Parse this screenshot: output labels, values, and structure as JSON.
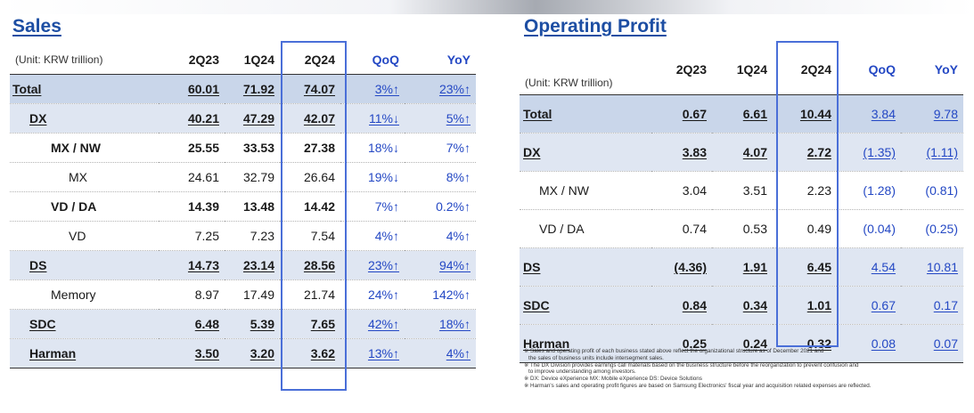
{
  "sales": {
    "title": "Sales",
    "unit": "(Unit: KRW trillion)",
    "columns": [
      "2Q23",
      "1Q24",
      "2Q24",
      "QoQ",
      "YoY"
    ],
    "rows": [
      {
        "label": "Total",
        "v1": "60.01",
        "v2": "71.92",
        "v3": "74.07",
        "qoq": "3%↑",
        "yoy": "23%↑"
      },
      {
        "label": "DX",
        "v1": "40.21",
        "v2": "47.29",
        "v3": "42.07",
        "qoq": "11%↓",
        "yoy": "5%↑"
      },
      {
        "label": "MX / NW",
        "v1": "25.55",
        "v2": "33.53",
        "v3": "27.38",
        "qoq": "18%↓",
        "yoy": "7%↑"
      },
      {
        "label": "MX",
        "v1": "24.61",
        "v2": "32.79",
        "v3": "26.64",
        "qoq": "19%↓",
        "yoy": "8%↑"
      },
      {
        "label": "VD / DA",
        "v1": "14.39",
        "v2": "13.48",
        "v3": "14.42",
        "qoq": "7%↑",
        "yoy": "0.2%↑"
      },
      {
        "label": "VD",
        "v1": "7.25",
        "v2": "7.23",
        "v3": "7.54",
        "qoq": "4%↑",
        "yoy": "4%↑"
      },
      {
        "label": "DS",
        "v1": "14.73",
        "v2": "23.14",
        "v3": "28.56",
        "qoq": "23%↑",
        "yoy": "94%↑"
      },
      {
        "label": "Memory",
        "v1": "8.97",
        "v2": "17.49",
        "v3": "21.74",
        "qoq": "24%↑",
        "yoy": "142%↑"
      },
      {
        "label": "SDC",
        "v1": "6.48",
        "v2": "5.39",
        "v3": "7.65",
        "qoq": "42%↑",
        "yoy": "18%↑"
      },
      {
        "label": "Harman",
        "v1": "3.50",
        "v2": "3.20",
        "v3": "3.62",
        "qoq": "13%↑",
        "yoy": "4%↑"
      }
    ]
  },
  "op": {
    "title": "Operating Profit",
    "unit": "(Unit: KRW trillion)",
    "columns": [
      "2Q23",
      "1Q24",
      "2Q24",
      "QoQ",
      "YoY"
    ],
    "rows": [
      {
        "label": "Total",
        "v1": "0.67",
        "v2": "6.61",
        "v3": "10.44",
        "qoq": "3.84",
        "yoy": "9.78"
      },
      {
        "label": "DX",
        "v1": "3.83",
        "v2": "4.07",
        "v3": "2.72",
        "qoq": "(1.35)",
        "yoy": "(1.11)"
      },
      {
        "label": "MX / NW",
        "v1": "3.04",
        "v2": "3.51",
        "v3": "2.23",
        "qoq": "(1.28)",
        "yoy": "(0.81)"
      },
      {
        "label": "VD / DA",
        "v1": "0.74",
        "v2": "0.53",
        "v3": "0.49",
        "qoq": "(0.04)",
        "yoy": "(0.25)"
      },
      {
        "label": "DS",
        "v1": "(4.36)",
        "v2": "1.91",
        "v3": "6.45",
        "qoq": "4.54",
        "yoy": "10.81"
      },
      {
        "label": "SDC",
        "v1": "0.84",
        "v2": "0.34",
        "v3": "1.01",
        "qoq": "0.67",
        "yoy": "0.17"
      },
      {
        "label": "Harman",
        "v1": "0.25",
        "v2": "0.24",
        "v3": "0.32",
        "qoq": "0.08",
        "yoy": "0.07"
      }
    ]
  },
  "notes": [
    "※ Sales and operating profit of each business stated above reflect the organizational structure as of December 2021 and",
    "the sales of business units include intersegment sales.",
    "※ The DX Division provides earnings call materials based on the business structure before the reorganization to prevent confusion and",
    "to improve understanding among investors.",
    "※ DX: Device eXperience MX: Mobile eXperience DS: Device Solutions",
    "※ Harman's sales and operating profit figures are based on Samsung Electronics' fiscal year and acquisition related expenses are reflected."
  ]
}
